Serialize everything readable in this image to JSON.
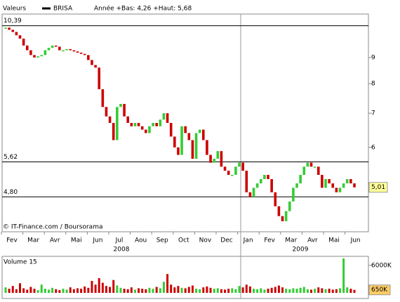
{
  "chart_data": [
    {
      "type": "candle",
      "legend_label": "Valeurs",
      "title": "BRISA",
      "subtitle": "Année +Bas: 4,26 +Haut: 5,68",
      "log_scale": true,
      "series": [
        {
          "name": "BRISA",
          "color": "#000000",
          "up_color": "#33cc33",
          "down_color": "#cc0000",
          "values": [
            10.3,
            10.2,
            10.1,
            9.95,
            9.8,
            9.5,
            9.3,
            9.1,
            9.0,
            9.05,
            9.1,
            9.3,
            9.4,
            9.5,
            9.45,
            9.3,
            9.3,
            9.35,
            9.3,
            9.25,
            9.2,
            9.15,
            9.1,
            8.9,
            8.7,
            8.6,
            7.8,
            7.2,
            6.9,
            6.7,
            6.2,
            7.2,
            7.3,
            6.9,
            6.7,
            6.6,
            6.7,
            6.6,
            6.5,
            6.4,
            6.6,
            6.7,
            6.6,
            6.8,
            7.0,
            6.7,
            6.3,
            6.0,
            5.8,
            6.6,
            6.4,
            6.2,
            5.7,
            6.4,
            6.5,
            6.2,
            5.8,
            5.6,
            5.7,
            5.9,
            5.5,
            5.4,
            5.3,
            5.3,
            5.5,
            5.6,
            5.4,
            4.9,
            4.8,
            5.0,
            5.1,
            5.2,
            5.3,
            5.2,
            4.9,
            4.6,
            4.4,
            4.3,
            4.5,
            4.7,
            5.0,
            5.1,
            5.3,
            5.5,
            5.6,
            5.5,
            5.5,
            5.3,
            5.0,
            5.2,
            5.1,
            5.0,
            4.9,
            5.0,
            5.1,
            5.2,
            5.1,
            5.01
          ]
        }
      ],
      "ylim": [
        4.1,
        10.95
      ],
      "yticks": [
        9,
        8,
        7,
        6
      ],
      "ref_lines": [
        {
          "value": 10.39,
          "label": "10,39"
        },
        {
          "value": 5.62,
          "label": "5,62"
        },
        {
          "value": 4.8,
          "label": "4,80"
        }
      ],
      "last_price": {
        "value": 5.01,
        "label": "5,01"
      },
      "months": [
        "Fev",
        "Mar",
        "Avr",
        "Mai",
        "Jun",
        "Jul",
        "Aou",
        "Sep",
        "Oct",
        "Nov",
        "Dec",
        "Jan",
        "Fev",
        "Mar",
        "Avr",
        "Mai",
        "Jun"
      ],
      "years": [
        "2008",
        "2009"
      ],
      "footer": "© IT-Finance.com / Boursorama"
    },
    {
      "type": "bar",
      "title": "Volume 15",
      "series": [
        {
          "name": "Volume",
          "values": [
            1200,
            900,
            1500,
            800,
            2100,
            1000,
            700,
            1300,
            900,
            600,
            1800,
            900,
            700,
            1100,
            800,
            600,
            900,
            700,
            1200,
            800,
            1000,
            900,
            1400,
            1100,
            2600,
            1800,
            3200,
            2200,
            1500,
            1300,
            2800,
            1600,
            1100,
            900,
            800,
            1200,
            700,
            1000,
            900,
            800,
            1100,
            900,
            1300,
            1000,
            2400,
            4100,
            1800,
            1200,
            1500,
            1100,
            1000,
            1300,
            1600,
            900,
            800,
            1200,
            1400,
            1100,
            900,
            1000,
            800,
            700,
            900,
            1000,
            800,
            1500,
            1200,
            1800,
            1400,
            900,
            800,
            1000,
            700,
            900,
            1100,
            1300,
            1600,
            1200,
            900,
            800,
            1000,
            900,
            1100,
            1300,
            800,
            700,
            900,
            1200,
            1000,
            800,
            900,
            700,
            800,
            1000,
            7500,
            1200,
            900,
            650
          ]
        }
      ],
      "ylim": [
        0,
        7950
      ],
      "yticks": [
        {
          "value": 6000,
          "label": "6000K"
        }
      ],
      "last_volume": {
        "value": 650,
        "label": "650K"
      }
    }
  ]
}
